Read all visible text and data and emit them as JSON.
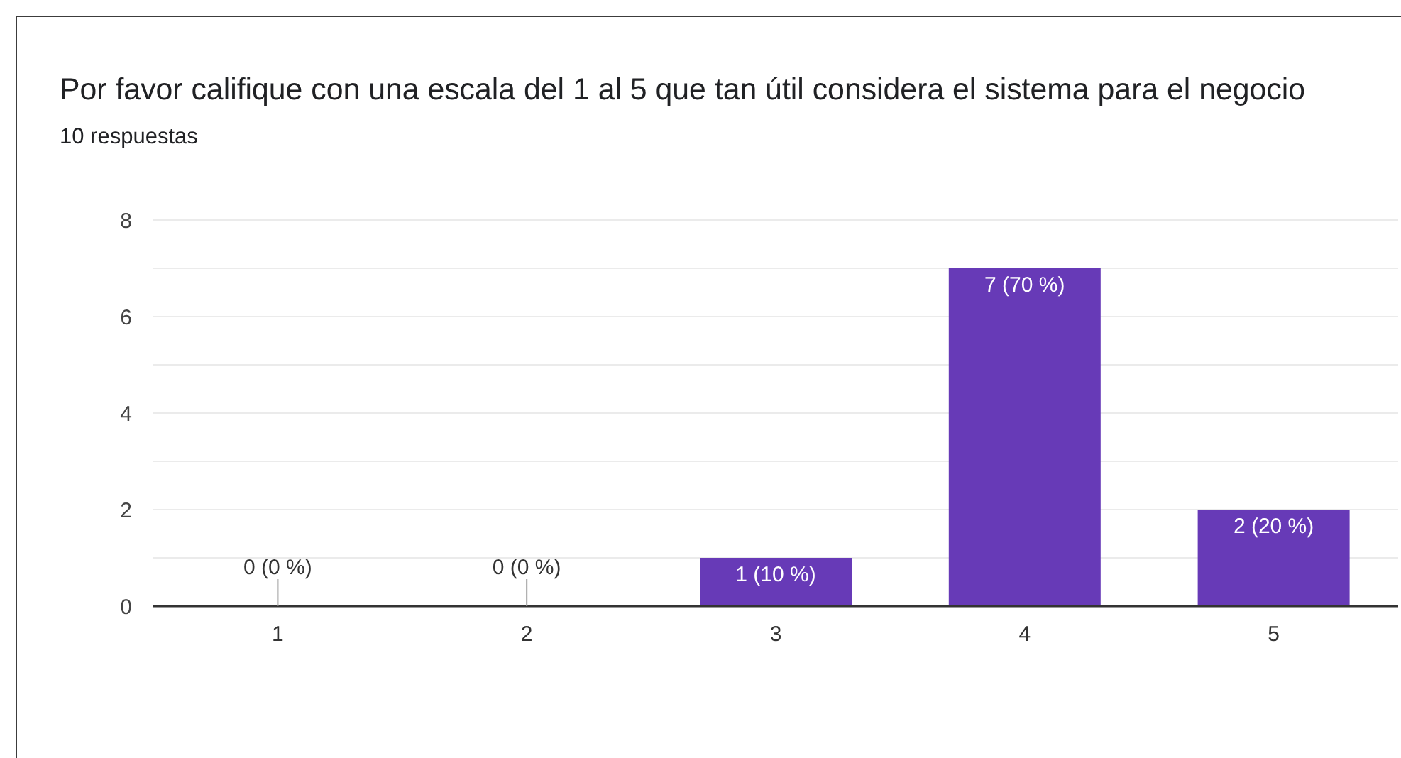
{
  "chart_data": {
    "type": "bar",
    "title": "Por favor califique con una escala del 1 al 5 que tan útil considera el sistema para el negocio",
    "subtitle": "10 respuestas",
    "categories": [
      "1",
      "2",
      "3",
      "4",
      "5"
    ],
    "values": [
      0,
      0,
      1,
      7,
      2
    ],
    "color": "#673ab7",
    "value_labels": [
      "0 (0 %)",
      "0 (0 %)",
      "1 (10 %)",
      "7 (70 %)",
      "2 (20 %)"
    ],
    "ylim": [
      0,
      8
    ],
    "yticks": [
      0,
      {
        "value": 1,
        "label": null
      },
      2,
      {
        "value": 3,
        "label": null
      },
      4,
      {
        "value": 5,
        "label": null
      },
      6,
      {
        "value": 7,
        "label": null
      },
      8
    ],
    "grid": "y"
  }
}
